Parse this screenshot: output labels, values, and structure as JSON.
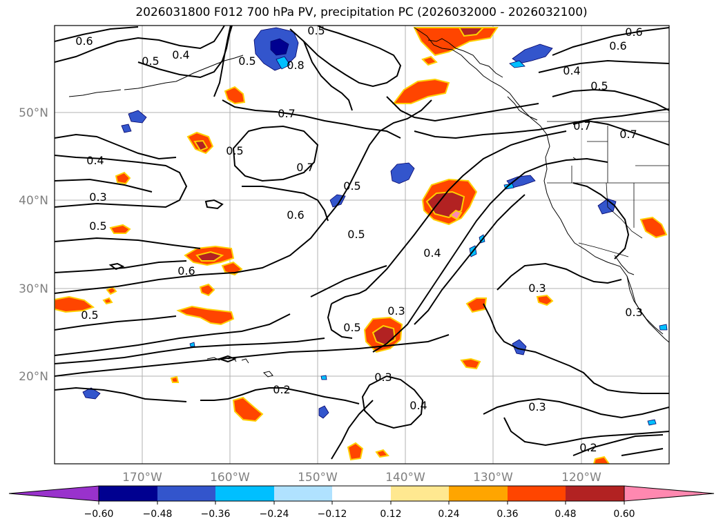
{
  "title": "2026031800 F012 700 hPa PV, precipitation PC (2026032000 - 2026032100)",
  "axes": {
    "lat_labels": [
      "50°N",
      "40°N",
      "30°N",
      "20°N"
    ],
    "lon_labels": [
      "170°W",
      "160°W",
      "150°W",
      "140°W",
      "130°W",
      "120°W"
    ]
  },
  "contour_labels": [
    "0.6",
    "0.5",
    "0.4",
    "0.5",
    "0.8",
    "0.5",
    "0.7",
    "0.6",
    "0.4",
    "0.5",
    "0.7",
    "0.5",
    "0.4",
    "0.7",
    "0.6",
    "0.3",
    "0.5",
    "0.5",
    "0.6",
    "0.5",
    "0.4",
    "0.5",
    "0.3",
    "0.3",
    "0.3",
    "0.2",
    "0.3",
    "0.4",
    "0.3",
    "0.2",
    "0.5",
    "0.6",
    "0.7"
  ],
  "colorbar": {
    "tick_labels": [
      "−0.60",
      "−0.48",
      "−0.36",
      "−0.24",
      "−0.12",
      "0.12",
      "0.24",
      "0.36",
      "0.48",
      "0.60"
    ],
    "colors": [
      "#9932cc",
      "#000090",
      "#3355cc",
      "#00bfff",
      "#b0e2ff",
      "#ffffff",
      "#ffe890",
      "#ffa500",
      "#ff4500",
      "#b22222",
      "#ff88b0"
    ]
  }
}
